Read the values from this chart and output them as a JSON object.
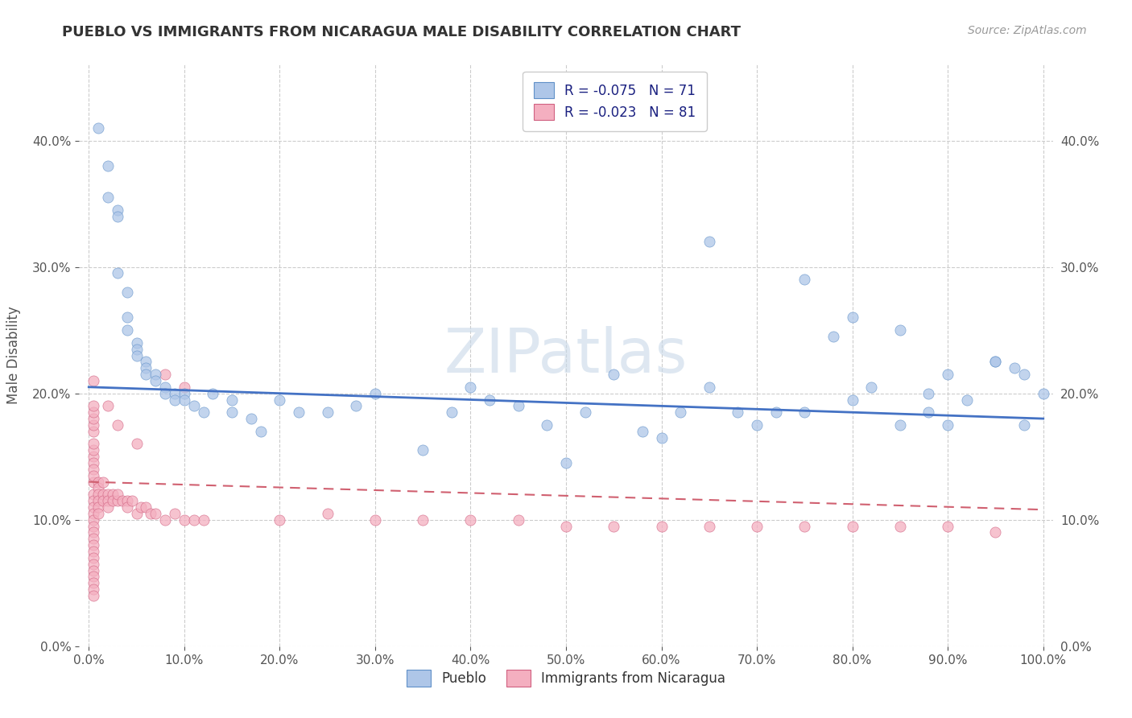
{
  "title": "PUEBLO VS IMMIGRANTS FROM NICARAGUA MALE DISABILITY CORRELATION CHART",
  "source": "Source: ZipAtlas.com",
  "ylabel": "Male Disability",
  "watermark": "ZIPatlas",
  "legend_label1": "R = -0.075   N = 71",
  "legend_label2": "R = -0.023   N = 81",
  "legend_name1": "Pueblo",
  "legend_name2": "Immigrants from Nicaragua",
  "color1": "#aec6e8",
  "color2": "#f4afc0",
  "edge1": "#6090c8",
  "edge2": "#d06080",
  "trendline1_color": "#4472c4",
  "trendline2_color": "#d06070",
  "xlim": [
    -0.01,
    1.01
  ],
  "ylim": [
    0.0,
    0.46
  ],
  "xticks": [
    0.0,
    0.1,
    0.2,
    0.3,
    0.4,
    0.5,
    0.6,
    0.7,
    0.8,
    0.9,
    1.0
  ],
  "yticks": [
    0.0,
    0.1,
    0.2,
    0.3,
    0.4
  ],
  "pueblo_x": [
    0.01,
    0.02,
    0.02,
    0.03,
    0.03,
    0.03,
    0.04,
    0.04,
    0.04,
    0.05,
    0.05,
    0.05,
    0.06,
    0.06,
    0.06,
    0.07,
    0.07,
    0.08,
    0.08,
    0.09,
    0.09,
    0.1,
    0.1,
    0.11,
    0.12,
    0.13,
    0.15,
    0.15,
    0.17,
    0.18,
    0.2,
    0.22,
    0.25,
    0.28,
    0.3,
    0.35,
    0.38,
    0.4,
    0.42,
    0.45,
    0.48,
    0.5,
    0.52,
    0.55,
    0.58,
    0.6,
    0.62,
    0.65,
    0.68,
    0.7,
    0.72,
    0.75,
    0.78,
    0.8,
    0.82,
    0.85,
    0.88,
    0.9,
    0.92,
    0.95,
    0.97,
    0.98,
    1.0,
    0.65,
    0.75,
    0.8,
    0.85,
    0.88,
    0.9,
    0.95,
    0.98
  ],
  "pueblo_y": [
    0.41,
    0.38,
    0.355,
    0.345,
    0.34,
    0.295,
    0.28,
    0.26,
    0.25,
    0.24,
    0.235,
    0.23,
    0.225,
    0.22,
    0.215,
    0.215,
    0.21,
    0.205,
    0.2,
    0.2,
    0.195,
    0.2,
    0.195,
    0.19,
    0.185,
    0.2,
    0.195,
    0.185,
    0.18,
    0.17,
    0.195,
    0.185,
    0.185,
    0.19,
    0.2,
    0.155,
    0.185,
    0.205,
    0.195,
    0.19,
    0.175,
    0.145,
    0.185,
    0.215,
    0.17,
    0.165,
    0.185,
    0.205,
    0.185,
    0.175,
    0.185,
    0.185,
    0.245,
    0.195,
    0.205,
    0.175,
    0.185,
    0.175,
    0.195,
    0.225,
    0.22,
    0.215,
    0.2,
    0.32,
    0.29,
    0.26,
    0.25,
    0.2,
    0.215,
    0.225,
    0.175
  ],
  "nicaragua_x": [
    0.005,
    0.005,
    0.005,
    0.005,
    0.005,
    0.005,
    0.005,
    0.005,
    0.005,
    0.005,
    0.005,
    0.005,
    0.005,
    0.005,
    0.005,
    0.005,
    0.005,
    0.005,
    0.005,
    0.005,
    0.005,
    0.005,
    0.005,
    0.005,
    0.005,
    0.005,
    0.005,
    0.005,
    0.005,
    0.005,
    0.01,
    0.01,
    0.01,
    0.01,
    0.01,
    0.01,
    0.015,
    0.015,
    0.015,
    0.02,
    0.02,
    0.02,
    0.025,
    0.025,
    0.03,
    0.03,
    0.035,
    0.04,
    0.04,
    0.045,
    0.05,
    0.055,
    0.06,
    0.065,
    0.07,
    0.08,
    0.09,
    0.1,
    0.11,
    0.12,
    0.2,
    0.25,
    0.3,
    0.35,
    0.4,
    0.45,
    0.5,
    0.55,
    0.6,
    0.65,
    0.7,
    0.75,
    0.8,
    0.85,
    0.9,
    0.95,
    0.02,
    0.03,
    0.05,
    0.08,
    0.1
  ],
  "nicaragua_y": [
    0.13,
    0.12,
    0.115,
    0.11,
    0.105,
    0.1,
    0.095,
    0.09,
    0.085,
    0.08,
    0.075,
    0.07,
    0.065,
    0.06,
    0.055,
    0.05,
    0.045,
    0.04,
    0.15,
    0.145,
    0.14,
    0.135,
    0.155,
    0.16,
    0.17,
    0.175,
    0.18,
    0.185,
    0.19,
    0.21,
    0.13,
    0.125,
    0.12,
    0.115,
    0.11,
    0.105,
    0.13,
    0.12,
    0.115,
    0.12,
    0.115,
    0.11,
    0.12,
    0.115,
    0.115,
    0.12,
    0.115,
    0.115,
    0.11,
    0.115,
    0.105,
    0.11,
    0.11,
    0.105,
    0.105,
    0.1,
    0.105,
    0.1,
    0.1,
    0.1,
    0.1,
    0.105,
    0.1,
    0.1,
    0.1,
    0.1,
    0.095,
    0.095,
    0.095,
    0.095,
    0.095,
    0.095,
    0.095,
    0.095,
    0.095,
    0.09,
    0.19,
    0.175,
    0.16,
    0.215,
    0.205
  ],
  "trendline1_x0": 0.0,
  "trendline1_y0": 0.205,
  "trendline1_x1": 1.0,
  "trendline1_y1": 0.18,
  "trendline2_x0": 0.0,
  "trendline2_y0": 0.13,
  "trendline2_x1": 1.0,
  "trendline2_y1": 0.108
}
